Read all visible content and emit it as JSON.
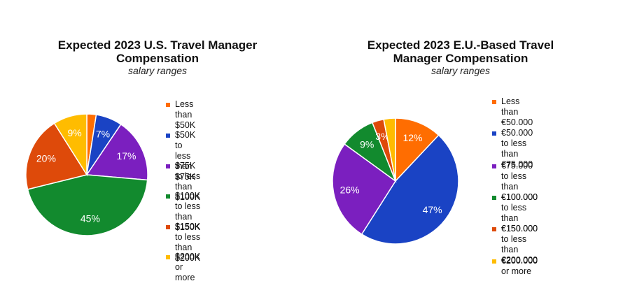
{
  "chart_data": [
    {
      "type": "pie",
      "title": "Expected 2023 U.S. Travel Manager Compensation",
      "title_lines": [
        "Expected 2023 U.S. Travel Manager",
        "Compensation"
      ],
      "subtitle": "salary ranges",
      "categories": [
        "Less than $50K",
        "$50K to less than $75K",
        "$75K to less than $100K",
        "$100K to less than $150K",
        "$150K to less than $200K",
        "$200K or more"
      ],
      "legend_labels": [
        "Less than $50K",
        "$50K to less than $75K",
        "$75K to less than $100K",
        "$100K to less than $150K",
        "$150K to less than $200K",
        "$200K or more"
      ],
      "values": [
        2.5,
        7,
        17,
        45,
        20,
        9
      ],
      "data_labels": [
        "",
        "7%",
        "17%",
        "45%",
        "20%",
        "9%"
      ],
      "colors": [
        "#ff6d01",
        "#1a43c4",
        "#7b1fbf",
        "#128a2e",
        "#de4a0a",
        "#ffbc00"
      ],
      "legend_position": "right"
    },
    {
      "type": "pie",
      "title": "Expected 2023 E.U.-Based Travel Manager Compensation",
      "title_lines": [
        "Expected 2023 E.U.-Based Travel",
        "Manager Compensation"
      ],
      "subtitle": "salary ranges",
      "categories": [
        "Less than €50.000",
        "€50.000 to less than €75.000",
        "€75.000 to less than €100.000",
        "€100.000 to less than €150.000",
        "€150.000 to less than €200.000",
        "€200.000 or more"
      ],
      "legend_labels": [
        "Less than €50.000",
        "€50.000 to less than\n€75.000",
        "€75.000 to less than\n€100.000",
        "€100.000 to less than\n€150.000",
        "€150.000 to less than\n€200.000",
        "€200.000 or more"
      ],
      "values": [
        12,
        47,
        26,
        9,
        3,
        3
      ],
      "data_labels": [
        "12%",
        "47%",
        "26%",
        "9%",
        "3%",
        ""
      ],
      "colors": [
        "#ff6d01",
        "#1a43c4",
        "#7b1fbf",
        "#128a2e",
        "#de4a0a",
        "#ffbc00"
      ],
      "legend_position": "right"
    }
  ]
}
